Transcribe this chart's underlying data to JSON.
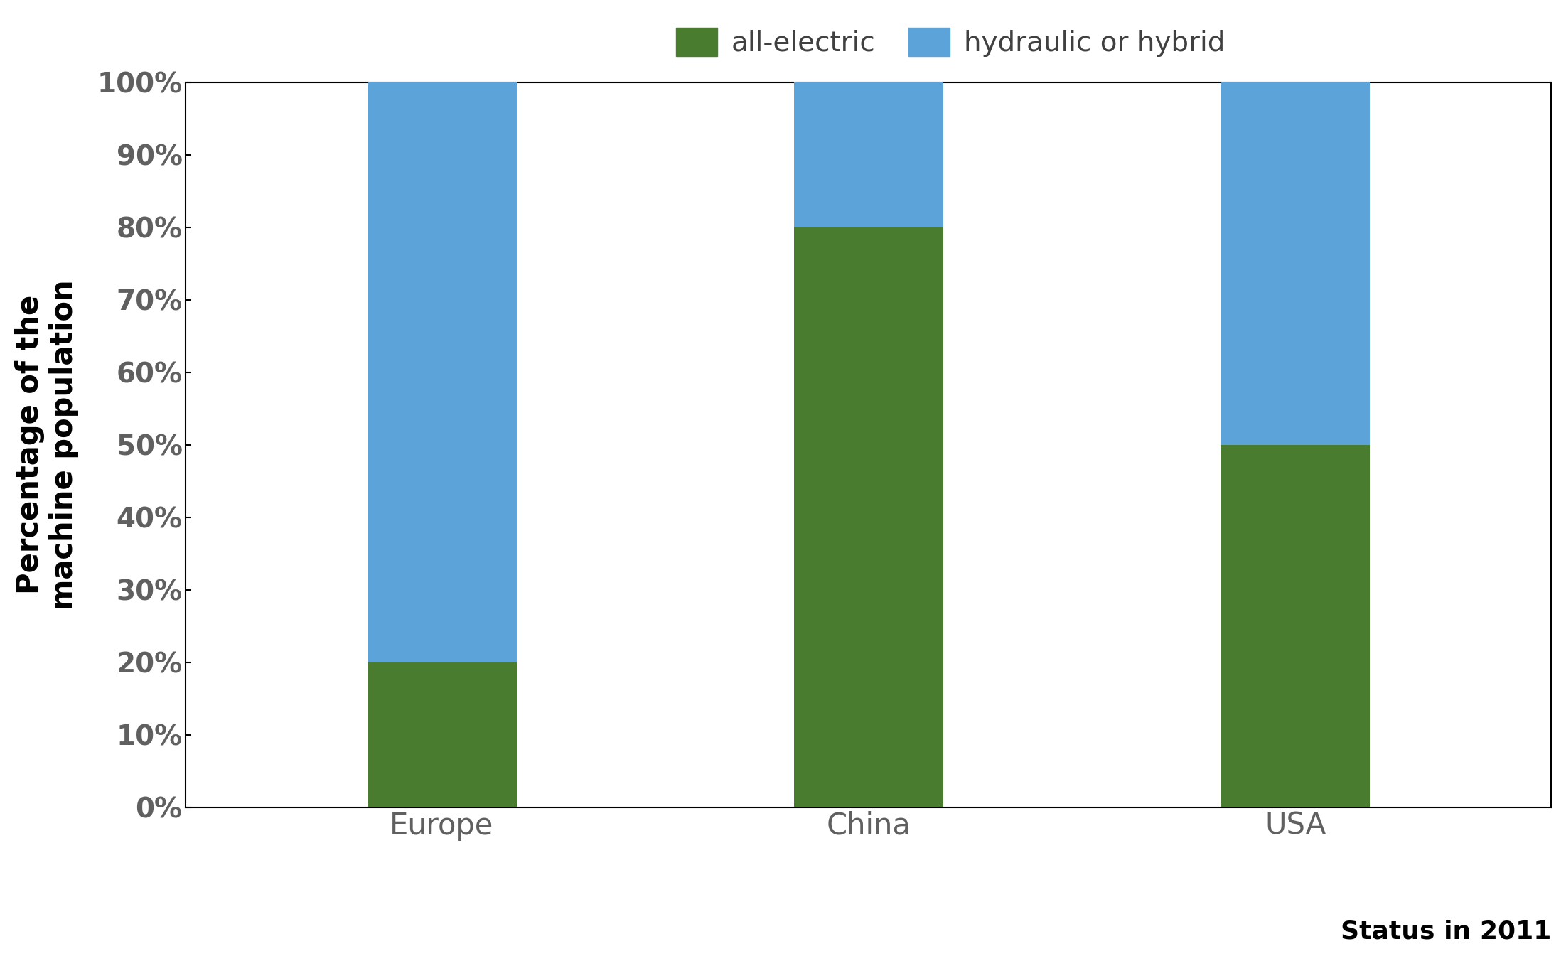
{
  "categories": [
    "Europe",
    "China",
    "USA"
  ],
  "all_electric": [
    20,
    80,
    50
  ],
  "hydraulic_or_hybrid": [
    80,
    20,
    50
  ],
  "color_electric": "#4a7c2f",
  "color_hydraulic": "#5ba3d9",
  "ylabel": "Percentage of the\nmachine population",
  "annotation": "Status in 2011",
  "legend_electric": "all-electric",
  "legend_hydraulic": "hydraulic or hybrid",
  "ylim": [
    0,
    100
  ],
  "yticks": [
    0,
    10,
    20,
    30,
    40,
    50,
    60,
    70,
    80,
    90,
    100
  ],
  "ytick_labels": [
    "0%",
    "10%",
    "20%",
    "30%",
    "40%",
    "50%",
    "60%",
    "70%",
    "80%",
    "90%",
    "100%"
  ],
  "bar_width": 0.35,
  "background_color": "#ffffff",
  "tick_label_color": "#606060",
  "ylabel_color": "#000000",
  "legend_text_color": "#404040",
  "annotation_color": "#000000",
  "spine_color": "#000000",
  "tick_fontsize": 28,
  "label_fontsize": 30,
  "legend_fontsize": 28,
  "annotation_fontsize": 26,
  "xtick_fontsize": 30
}
